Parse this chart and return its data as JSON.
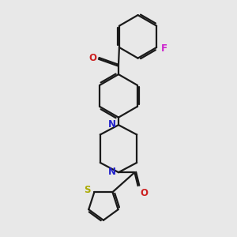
{
  "background_color": "#e8e8e8",
  "bond_color": "#1a1a1a",
  "nitrogen_color": "#2020cc",
  "oxygen_color": "#cc2020",
  "fluorine_color": "#cc22cc",
  "sulfur_color": "#aaaa00",
  "line_width": 1.6,
  "figsize": [
    3.0,
    3.0
  ],
  "dpi": 100,
  "xlim": [
    -4.5,
    4.5
  ],
  "ylim": [
    -5.5,
    5.5
  ]
}
